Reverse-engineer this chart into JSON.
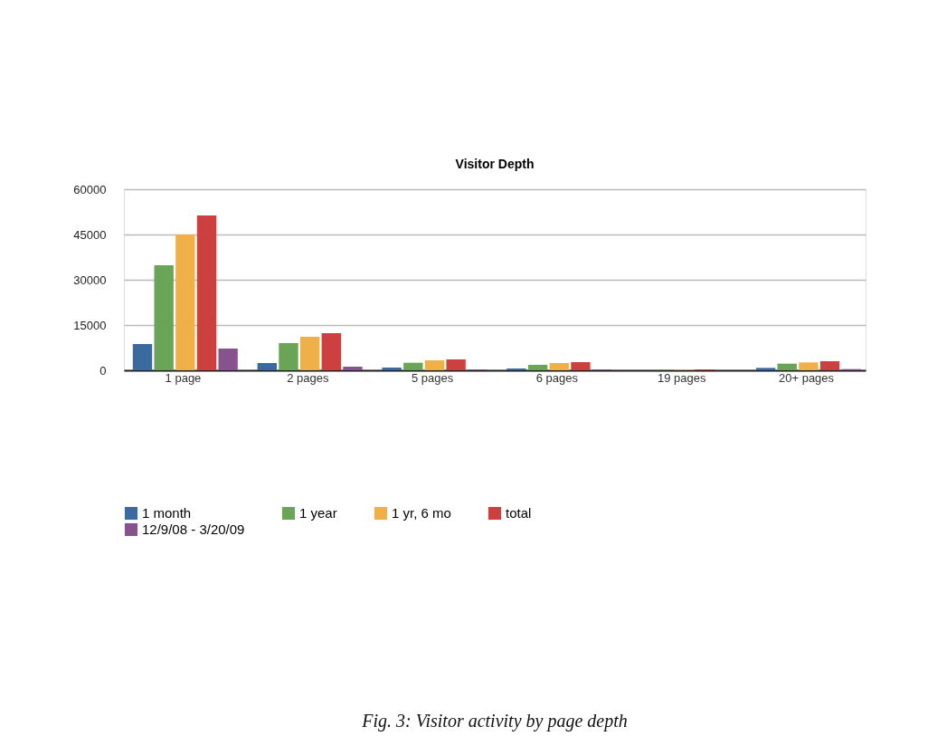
{
  "chart_data": {
    "type": "bar",
    "title": "Visitor Depth",
    "categories": [
      "1 page",
      "2 pages",
      "5 pages",
      "6 pages",
      "19 pages",
      "20+ pages"
    ],
    "series": [
      {
        "name": "1 month",
        "color": "#3a6aa0",
        "values": [
          8700,
          2400,
          900,
          600,
          null,
          800
        ]
      },
      {
        "name": "1 year",
        "color": "#6aa457",
        "values": [
          34800,
          9000,
          2500,
          1800,
          200,
          2200
        ]
      },
      {
        "name": "1 yr, 6 mo",
        "color": "#efb04a",
        "values": [
          45000,
          11100,
          3300,
          2400,
          200,
          2600
        ]
      },
      {
        "name": "total",
        "color": "#cc4040",
        "values": [
          51300,
          12300,
          3600,
          2700,
          300,
          3000
        ]
      },
      {
        "name": "12/9/08 - 3/20/09",
        "color": "#87538f",
        "values": [
          7200,
          1200,
          300,
          300,
          null,
          400
        ]
      }
    ],
    "ylim": [
      0,
      60000
    ],
    "yticks": [
      0,
      15000,
      30000,
      45000,
      60000
    ],
    "grid": "y",
    "legend": "bottom",
    "annotations": [
      "Fig. 3: Visitor activity by page depth"
    ]
  }
}
